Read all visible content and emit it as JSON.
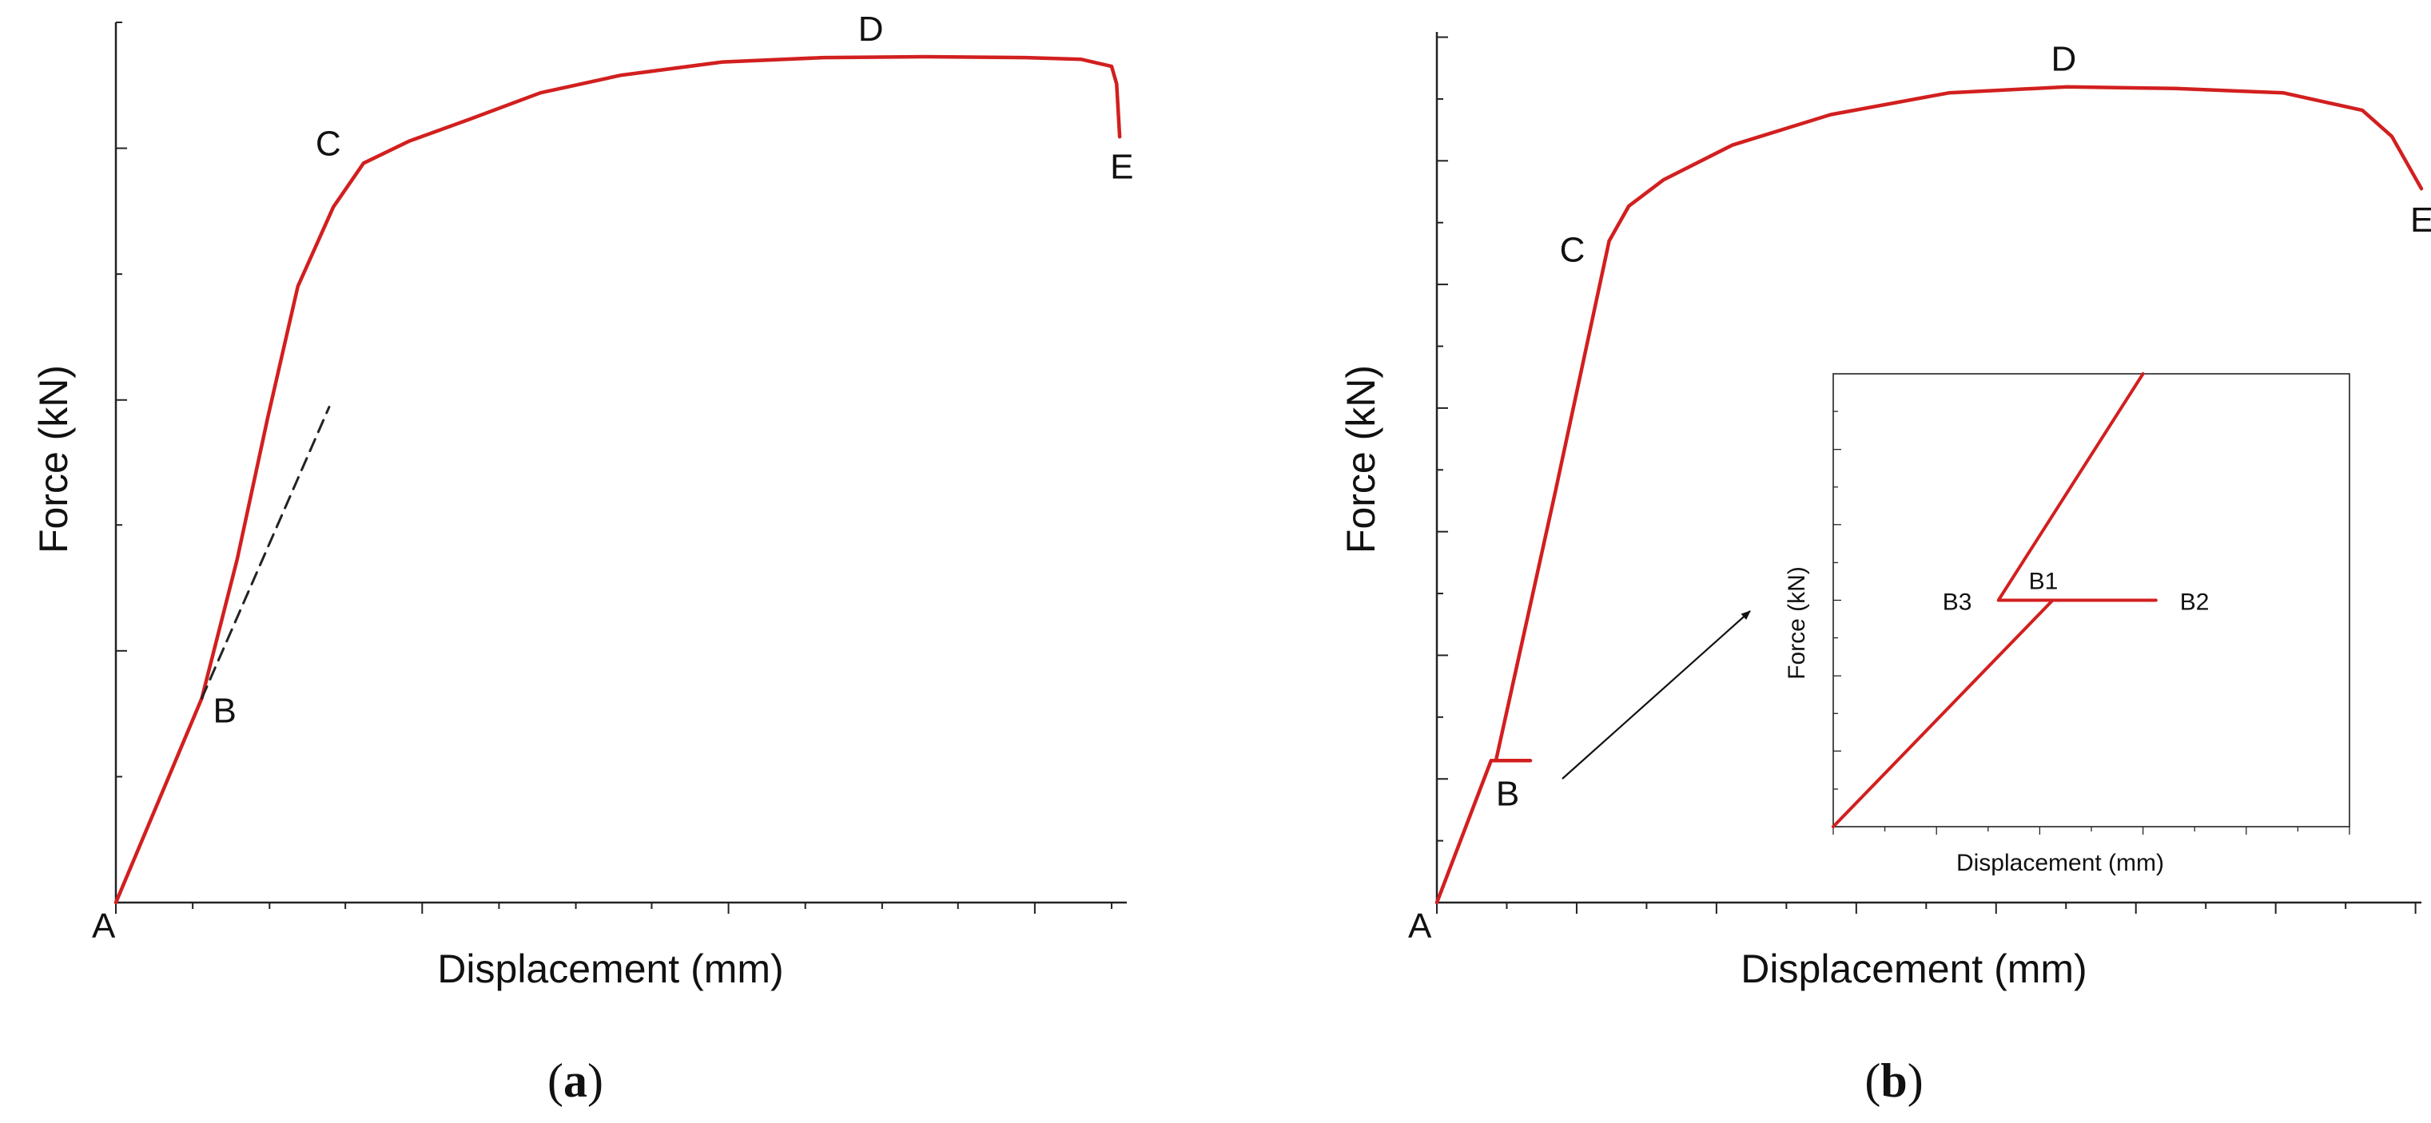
{
  "colors": {
    "curve": "#d21f1f",
    "axis": "#222222",
    "dashed": "#222222",
    "text": "#111111"
  },
  "panels": [
    {
      "caption_prefix": "(",
      "caption_letter": "a",
      "caption_suffix": ")"
    },
    {
      "caption_prefix": "(",
      "caption_letter": "b",
      "caption_suffix": ")"
    }
  ],
  "chart_data": [
    {
      "type": "line",
      "panel": "a",
      "xlabel": "Displacement (mm)",
      "ylabel": "Force (kN)",
      "xlim": [
        0,
        1
      ],
      "ylim": [
        0,
        1
      ],
      "x_major_ticks": [
        0,
        0.303,
        0.606,
        0.909
      ],
      "x_minor_ticks": [
        0.076,
        0.152,
        0.227,
        0.379,
        0.455,
        0.53,
        0.682,
        0.758,
        0.833,
        0.985
      ],
      "y_major_ticks": [
        0,
        0.286,
        0.571,
        0.857
      ],
      "y_minor_ticks": [
        0.143,
        0.429,
        0.714,
        1.0
      ],
      "series": [
        {
          "name": "force-displacement",
          "style": "solid",
          "x": [
            0,
            0.085,
            0.12,
            0.15,
            0.18,
            0.215,
            0.245,
            0.29,
            0.35,
            0.42,
            0.5,
            0.6,
            0.7,
            0.8,
            0.9,
            0.955,
            0.985,
            0.99,
            0.993
          ],
          "y": [
            0,
            0.232,
            0.39,
            0.55,
            0.7,
            0.79,
            0.84,
            0.865,
            0.89,
            0.92,
            0.94,
            0.955,
            0.96,
            0.961,
            0.96,
            0.958,
            0.95,
            0.93,
            0.87
          ]
        },
        {
          "name": "initial-stiffness-extension",
          "style": "dashed",
          "x": [
            0.085,
            0.211
          ],
          "y": [
            0.232,
            0.563
          ]
        }
      ],
      "annotations": [
        {
          "label": "A",
          "x": 0,
          "y": 0
        },
        {
          "label": "B",
          "x": 0.085,
          "y": 0.232
        },
        {
          "label": "C",
          "x": 0.245,
          "y": 0.84
        },
        {
          "label": "D",
          "x": 0.75,
          "y": 0.961
        },
        {
          "label": "E",
          "x": 0.993,
          "y": 0.87
        }
      ]
    },
    {
      "type": "line",
      "panel": "b",
      "xlabel": "Displacement (mm)",
      "ylabel": "Force (kN)",
      "xlim": [
        0,
        1
      ],
      "ylim": [
        0,
        1
      ],
      "x_major_ticks": [
        0,
        0.142,
        0.284,
        0.426,
        0.568,
        0.71,
        0.852,
        0.994
      ],
      "x_minor_ticks": [
        0.071,
        0.213,
        0.355,
        0.497,
        0.639,
        0.781,
        0.923
      ],
      "y_major_ticks": [
        0,
        0.142,
        0.284,
        0.426,
        0.568,
        0.71,
        0.852,
        0.994
      ],
      "y_minor_ticks": [
        0.071,
        0.213,
        0.355,
        0.497,
        0.639,
        0.781,
        0.923
      ],
      "series": [
        {
          "name": "force-displacement",
          "style": "solid",
          "x": [
            0,
            0.055,
            0.06,
            0.06,
            0.095,
            0.06,
            0.12,
            0.175,
            0.195,
            0.23,
            0.3,
            0.4,
            0.52,
            0.64,
            0.75,
            0.86,
            0.94,
            0.97,
            1.0
          ],
          "y": [
            0,
            0.163,
            0.163,
            0.163,
            0.163,
            0.163,
            0.47,
            0.76,
            0.8,
            0.83,
            0.87,
            0.905,
            0.93,
            0.937,
            0.935,
            0.93,
            0.91,
            0.88,
            0.82
          ]
        }
      ],
      "annotations": [
        {
          "label": "A",
          "x": 0,
          "y": 0
        },
        {
          "label": "B",
          "x": 0.06,
          "y": 0.163
        },
        {
          "label": "C",
          "x": 0.175,
          "y": 0.76
        },
        {
          "label": "D",
          "x": 0.64,
          "y": 0.937
        },
        {
          "label": "E",
          "x": 1.0,
          "y": 0.82
        }
      ]
    },
    {
      "type": "line",
      "panel": "b-inset",
      "xlabel": "Displacement (mm)",
      "ylabel": "Force (kN)",
      "xlim": [
        0,
        1
      ],
      "ylim": [
        0,
        1
      ],
      "x_major_ticks": [
        0,
        0.2,
        0.4,
        0.6,
        0.8,
        1.0
      ],
      "x_minor_ticks": [
        0.1,
        0.3,
        0.5,
        0.7,
        0.9
      ],
      "y_major_ticks": [
        0,
        0.167,
        0.333,
        0.5,
        0.667,
        0.833
      ],
      "y_minor_ticks": [
        0.083,
        0.25,
        0.417,
        0.583,
        0.75,
        0.917
      ],
      "series": [
        {
          "name": "zoom-B",
          "style": "solid",
          "x": [
            0,
            0.425,
            0.625,
            0.425,
            0.32,
            0.6
          ],
          "y": [
            0,
            0.5,
            0.5,
            0.5,
            0.5,
            1.0
          ]
        }
      ],
      "annotations": [
        {
          "label": "B1",
          "x": 0.425,
          "y": 0.5
        },
        {
          "label": "B2",
          "x": 0.625,
          "y": 0.5
        },
        {
          "label": "B3",
          "x": 0.32,
          "y": 0.5
        }
      ]
    }
  ]
}
